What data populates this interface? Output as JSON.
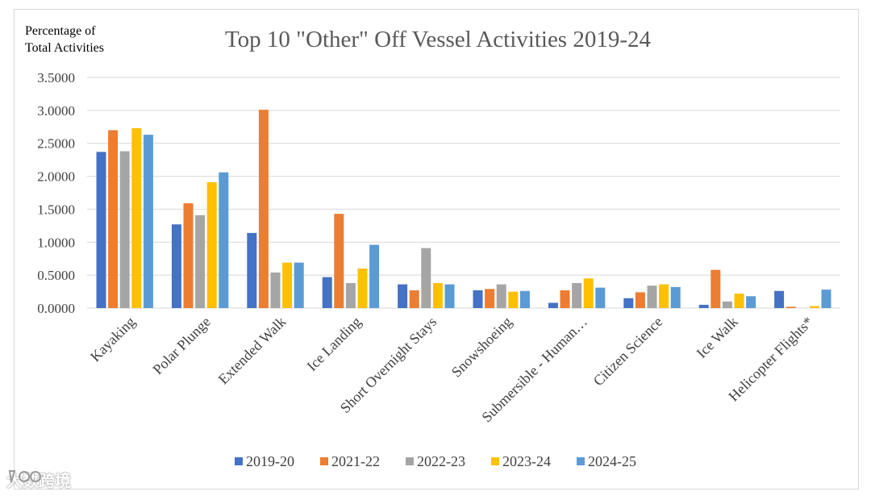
{
  "chart_data": {
    "type": "bar",
    "title": "Top 10 \"Other\" Off Vessel Activities 2019-24",
    "ylabel_lines": [
      "Percentage of",
      "Total Activities"
    ],
    "xlabel": "",
    "ylim": [
      0,
      3.5
    ],
    "yticks": [
      "0.0000",
      "0.5000",
      "1.0000",
      "1.5000",
      "2.0000",
      "2.5000",
      "3.0000",
      "3.5000"
    ],
    "ytick_values": [
      0,
      0.5,
      1.0,
      1.5,
      2.0,
      2.5,
      3.0,
      3.5
    ],
    "grid": true,
    "legend_position": "bottom",
    "categories": [
      "Kayaking",
      "Polar Plunge",
      "Extended Walk",
      "Ice Landing",
      "Short Overnight Stays",
      "Snowshoeing",
      "Submersible - Human…",
      "Citizen Science",
      "Ice Walk",
      "Helicopter Flights*"
    ],
    "series": [
      {
        "name": "2019-20",
        "color": "#4472c4",
        "values": [
          2.37,
          1.27,
          1.14,
          0.47,
          0.36,
          0.27,
          0.08,
          0.15,
          0.05,
          0.26
        ]
      },
      {
        "name": "2021-22",
        "color": "#ed7d31",
        "values": [
          2.7,
          1.59,
          3.01,
          1.43,
          0.27,
          0.29,
          0.27,
          0.24,
          0.58,
          0.02
        ]
      },
      {
        "name": "2022-23",
        "color": "#a5a5a5",
        "values": [
          2.38,
          1.41,
          0.54,
          0.38,
          0.91,
          0.36,
          0.38,
          0.34,
          0.1,
          0.0
        ]
      },
      {
        "name": "2023-24",
        "color": "#ffc000",
        "values": [
          2.73,
          1.91,
          0.69,
          0.6,
          0.38,
          0.25,
          0.45,
          0.36,
          0.22,
          0.03
        ]
      },
      {
        "name": "2024-25",
        "color": "#5b9bd5",
        "values": [
          2.63,
          2.06,
          0.69,
          0.96,
          0.36,
          0.26,
          0.31,
          0.32,
          0.18,
          0.28
        ]
      }
    ]
  },
  "watermark": {
    "text": "大数跨境"
  }
}
